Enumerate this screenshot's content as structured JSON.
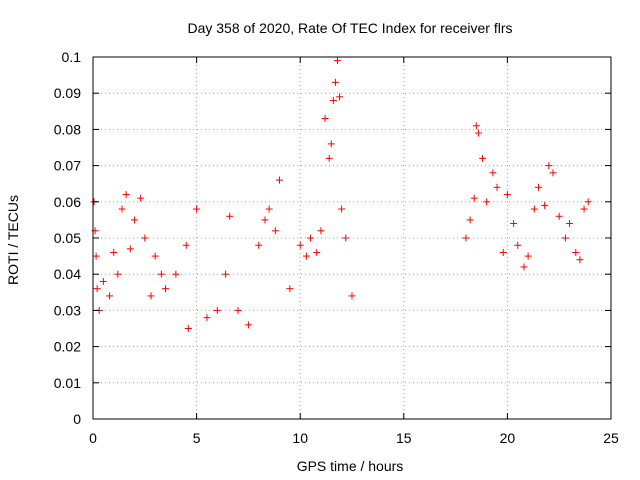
{
  "chart_data": {
    "type": "scatter",
    "title": "Day 358 of 2020, Rate Of TEC Index for receiver flrs",
    "xlabel": "GPS time / hours",
    "ylabel": "ROTI / TECUs",
    "xlim": [
      0,
      25
    ],
    "ylim": [
      0,
      0.1
    ],
    "x_ticks": [
      0,
      5,
      10,
      15,
      20,
      25
    ],
    "x_tick_labels": [
      "0",
      "5",
      "10",
      "15",
      "20",
      "25"
    ],
    "y_ticks": [
      0,
      0.01,
      0.02,
      0.03,
      0.04,
      0.05,
      0.06,
      0.07,
      0.08,
      0.09,
      0.1
    ],
    "y_tick_labels": [
      "0",
      "0.01",
      "0.02",
      "0.03",
      "0.04",
      "0.05",
      "0.06",
      "0.07",
      "0.08",
      "0.09",
      "0.1"
    ],
    "grid": true,
    "marker": "+",
    "color": "#ff0000",
    "series": [
      {
        "name": "flrs",
        "x": [
          0.05,
          0.1,
          0.15,
          0.2,
          0.3,
          0.5,
          0.8,
          1.0,
          1.2,
          1.4,
          1.6,
          1.8,
          2.0,
          2.3,
          2.5,
          2.8,
          3.0,
          3.3,
          3.5,
          4.0,
          4.5,
          4.6,
          5.0,
          5.5,
          6.0,
          6.4,
          6.6,
          7.0,
          7.5,
          8.0,
          8.3,
          8.5,
          8.8,
          9.0,
          9.5,
          10.0,
          10.3,
          10.5,
          10.8,
          11.0,
          11.2,
          11.4,
          11.5,
          11.6,
          11.7,
          11.8,
          11.9,
          12.0,
          12.2,
          12.5,
          18.0,
          18.2,
          18.4,
          18.5,
          18.6,
          18.8,
          19.0,
          19.3,
          19.5,
          19.8,
          20.0,
          20.3,
          20.5,
          20.8,
          21.0,
          21.3,
          21.5,
          21.8,
          22.0,
          22.2,
          22.5,
          22.8,
          23.0,
          23.3,
          23.5,
          23.7,
          23.9
        ],
        "y": [
          0.06,
          0.052,
          0.045,
          0.036,
          0.03,
          0.038,
          0.034,
          0.046,
          0.04,
          0.058,
          0.062,
          0.047,
          0.055,
          0.061,
          0.05,
          0.034,
          0.045,
          0.04,
          0.036,
          0.04,
          0.048,
          0.025,
          0.058,
          0.028,
          0.03,
          0.04,
          0.056,
          0.03,
          0.026,
          0.048,
          0.055,
          0.058,
          0.052,
          0.066,
          0.036,
          0.048,
          0.045,
          0.05,
          0.046,
          0.052,
          0.083,
          0.072,
          0.076,
          0.088,
          0.093,
          0.099,
          0.089,
          0.058,
          0.05,
          0.034,
          0.05,
          0.055,
          0.061,
          0.081,
          0.079,
          0.072,
          0.06,
          0.068,
          0.064,
          0.046,
          0.062,
          0.054,
          0.048,
          0.042,
          0.045,
          0.058,
          0.064,
          0.059,
          0.07,
          0.068,
          0.056,
          0.05,
          0.054,
          0.046,
          0.044,
          0.058,
          0.06
        ]
      }
    ]
  }
}
